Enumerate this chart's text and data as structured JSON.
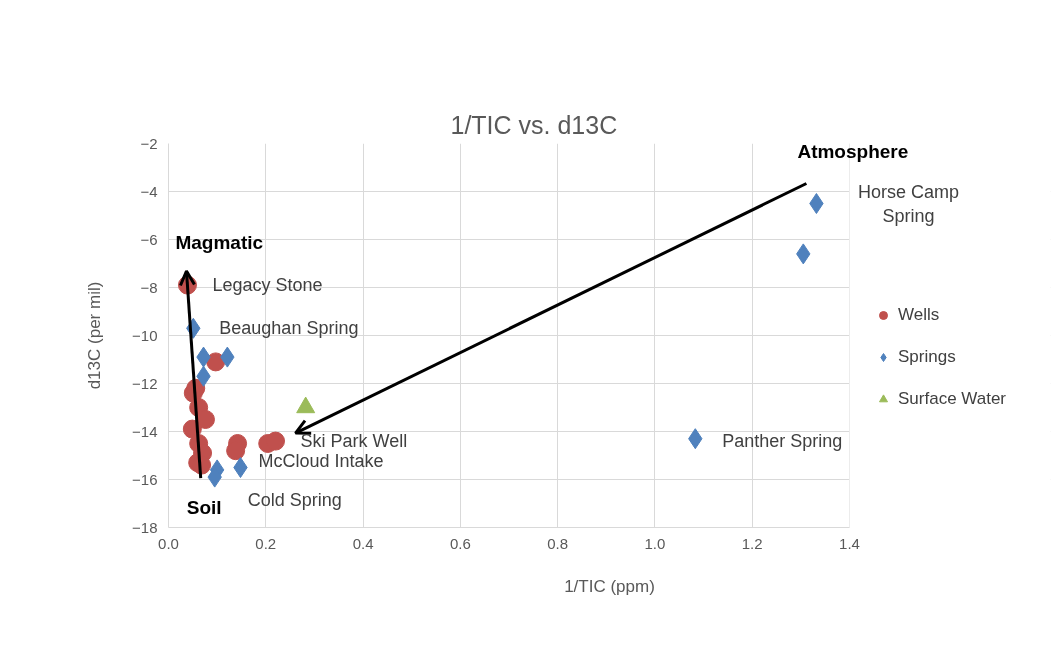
{
  "chart_data": {
    "type": "scatter",
    "title": "1/TIC vs. d13C",
    "xlabel": "1/TIC (ppm)",
    "ylabel": "d13C (per mil)",
    "xlim": [
      0,
      1.4
    ],
    "xticks": [
      {
        "value": 0,
        "label": "0.0"
      },
      {
        "value": 0.2,
        "label": "0.2"
      },
      {
        "value": 0.4,
        "label": "0.4"
      },
      {
        "value": 0.6,
        "label": "0.6"
      },
      {
        "value": 0.8,
        "label": "0.8"
      },
      {
        "value": 1.0,
        "label": "1.0"
      },
      {
        "value": 1.2,
        "label": "1.2"
      },
      {
        "value": 1.4,
        "label": "1.4"
      }
    ],
    "ylim": [
      -18,
      -2
    ],
    "yticks": [
      -18,
      -16,
      -14,
      -12,
      -10,
      -8,
      -6,
      -4,
      -2
    ],
    "grid": true,
    "legend": "right",
    "series": [
      {
        "name": "Wells",
        "color": "#c0504d",
        "marker": "circle",
        "x": [
          0.039,
          0.097,
          0.051,
          0.062,
          0.076,
          0.049,
          0.062,
          0.07,
          0.06,
          0.142,
          0.138,
          0.204,
          0.22,
          0.056,
          0.068
        ],
        "values": [
          -7.9,
          -11.1,
          -12.4,
          -13.0,
          -13.5,
          -13.9,
          -14.5,
          -14.9,
          -15.3,
          -14.5,
          -14.8,
          -14.5,
          -14.4,
          -12.2,
          -15.4
        ]
      },
      {
        "name": "Springs",
        "color": "#4f81bd",
        "marker": "diamond",
        "x": [
          0.051,
          0.072,
          0.121,
          0.072,
          0.1,
          0.148,
          0.095,
          1.332,
          1.305,
          1.083
        ],
        "values": [
          -9.7,
          -10.9,
          -10.9,
          -11.7,
          -15.6,
          -15.5,
          -15.9,
          -4.5,
          -6.6,
          -14.3
        ]
      },
      {
        "name": "Surface Water",
        "color": "#9bbb59",
        "marker": "triangle",
        "x": [
          0.282
        ],
        "values": [
          -13.0
        ]
      }
    ],
    "annotations": [
      "Magmatic",
      "Soil",
      "Atmosphere",
      {
        "text": "Legacy Stone",
        "x": 0.039,
        "y": -7.9
      },
      {
        "text": "Beaughan Spring",
        "x": 0.051,
        "y": -9.7
      },
      {
        "text": "Horse Camp Spring",
        "x": 1.332,
        "y": -4.5
      },
      {
        "text": "Ski Park Well",
        "x": 0.22,
        "y": -14.4
      },
      {
        "text": "McCloud Intake",
        "x": 0.148,
        "y": -15.5
      },
      {
        "text": "Cold Spring",
        "x": 0.095,
        "y": -15.9
      },
      {
        "text": "Panther Spring",
        "x": 1.083,
        "y": -14.3
      }
    ]
  }
}
